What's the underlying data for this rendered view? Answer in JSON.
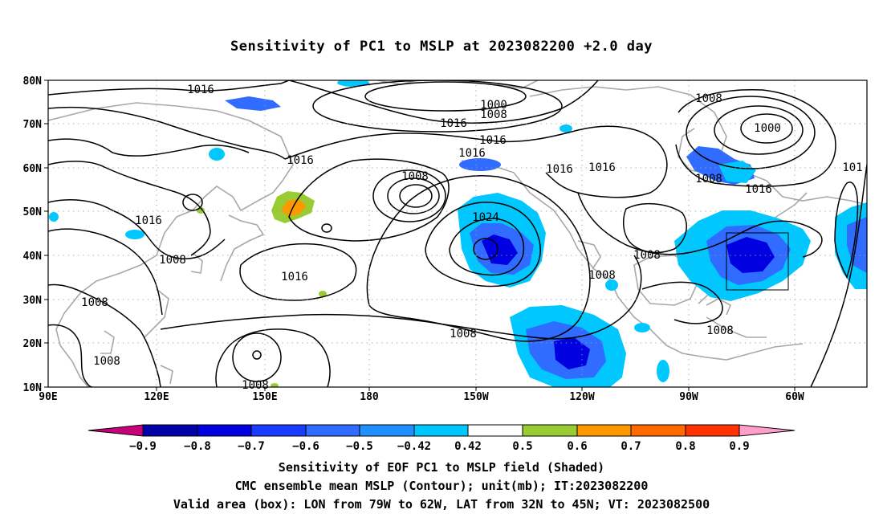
{
  "title": "Sensitivity of PC1 to MSLP at 2023082200 +2.0 day",
  "map": {
    "lat_labels": [
      "80N",
      "70N",
      "60N",
      "50N",
      "40N",
      "30N",
      "20N",
      "10N"
    ],
    "lon_labels": [
      "90E",
      "120E",
      "150E",
      "180",
      "150W",
      "120W",
      "90W",
      "60W"
    ],
    "contour_labels": [
      {
        "text": "1016"
      },
      {
        "text": "1000"
      },
      {
        "text": "1008"
      },
      {
        "text": "1016"
      },
      {
        "text": "1008"
      },
      {
        "text": "1000"
      },
      {
        "text": "1016"
      },
      {
        "text": "1016"
      },
      {
        "text": "1016"
      },
      {
        "text": "1016"
      },
      {
        "text": "1008"
      },
      {
        "text": "1008"
      },
      {
        "text": "1016"
      },
      {
        "text": "101"
      },
      {
        "text": "1016"
      },
      {
        "text": "1024"
      },
      {
        "text": "1008"
      },
      {
        "text": "1016"
      },
      {
        "text": "1008"
      },
      {
        "text": "1008"
      },
      {
        "text": "1016"
      },
      {
        "text": "1008"
      },
      {
        "text": "1008"
      },
      {
        "text": "1008"
      },
      {
        "text": "1008"
      }
    ]
  },
  "colorbar": {
    "labels": [
      "-0.9",
      "-0.8",
      "-0.7",
      "-0.6",
      "-0.5",
      "-0.42",
      "0.42",
      "0.5",
      "0.6",
      "0.7",
      "0.8",
      "0.9"
    ],
    "colors": {
      "lt_-0.9": "#c8007a",
      "b1": "#0000a8",
      "b2": "#0000e0",
      "b3": "#1a3cff",
      "b4": "#2f6cff",
      "b5": "#1e90ff",
      "b6": "#00c8ff",
      "b7": "#ffffff",
      "b8": "#99cc33",
      "b9": "#ff9900",
      "b10": "#ff6a00",
      "b11": "#ff3300",
      "b12": "#ff0000",
      "gt_0.9": "#ff9ec8"
    }
  },
  "footer": {
    "line1": "Sensitivity of EOF PC1 to MSLP field (Shaded)",
    "line2": "CMC ensemble mean MSLP (Contour); unit(mb); IT:2023082200",
    "line3": "Valid area (box): LON from 79W to 62W, LAT from 32N to 45N; VT: 2023082500"
  }
}
